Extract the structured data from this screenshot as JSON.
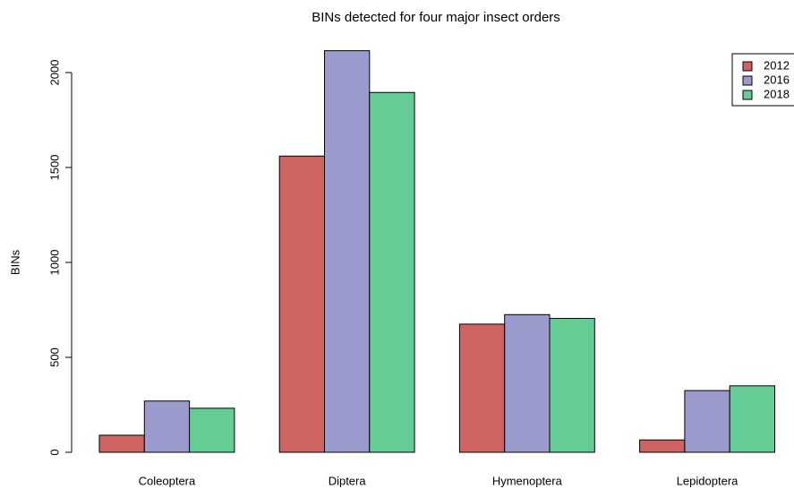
{
  "chart_data": {
    "type": "bar",
    "title": "BINs detected for four major insect orders",
    "y_label": "BINs",
    "categories": [
      "Coleoptera",
      "Diptera",
      "Hymenoptera",
      "Lepidoptera"
    ],
    "series": [
      {
        "name": "2012",
        "color": "#cd6462",
        "values": [
          90,
          1560,
          675,
          65
        ]
      },
      {
        "name": "2016",
        "color": "#9b9acc",
        "values": [
          270,
          2115,
          725,
          325
        ]
      },
      {
        "name": "2018",
        "color": "#66cc95",
        "values": [
          232,
          1895,
          705,
          350
        ]
      }
    ],
    "ylim": [
      0,
      2000
    ],
    "yticks": [
      0,
      500,
      1000,
      1500,
      2000
    ],
    "grid": false,
    "legend": "top-right"
  }
}
